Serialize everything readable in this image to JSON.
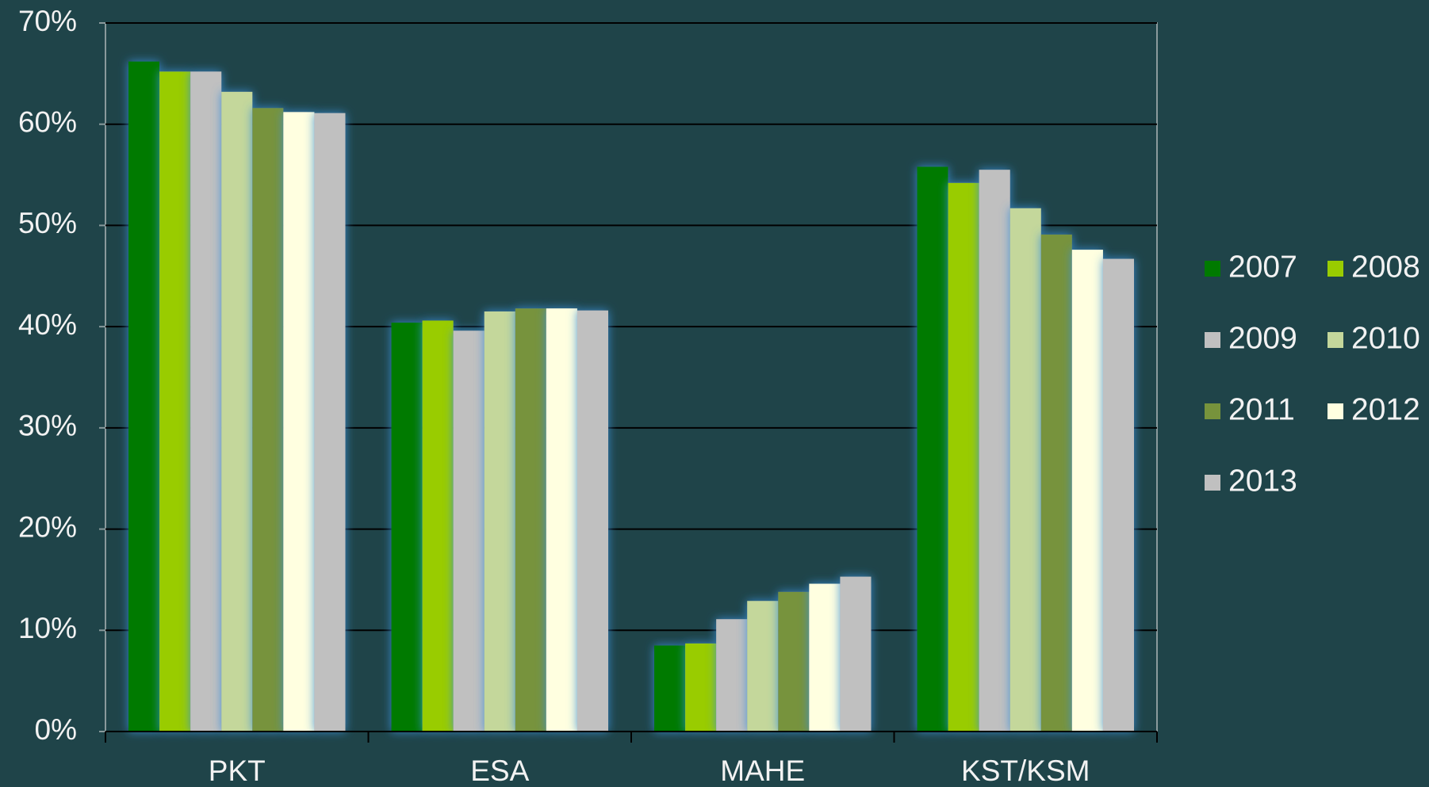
{
  "chart_data": {
    "type": "bar",
    "categories": [
      "PKT",
      "ESA",
      "MAHE",
      "KST/KSM"
    ],
    "series": [
      {
        "name": "2007",
        "color": "#007a00",
        "values": [
          66.2,
          40.4,
          8.5,
          55.8
        ]
      },
      {
        "name": "2008",
        "color": "#99cc00",
        "values": [
          65.2,
          40.6,
          8.7,
          54.2
        ]
      },
      {
        "name": "2009",
        "color": "#c0c0c0",
        "values": [
          65.2,
          39.6,
          11.1,
          55.5
        ]
      },
      {
        "name": "2010",
        "color": "#c4d79b",
        "values": [
          63.2,
          41.5,
          12.9,
          51.7
        ]
      },
      {
        "name": "2011",
        "color": "#77933c",
        "values": [
          61.6,
          41.8,
          13.8,
          49.1
        ]
      },
      {
        "name": "2012",
        "color": "#ffffe0",
        "values": [
          61.2,
          41.8,
          14.6,
          47.6
        ]
      },
      {
        "name": "2013",
        "color": "#c0c0c0",
        "values": [
          61.1,
          41.6,
          15.3,
          46.7
        ]
      }
    ],
    "ylim": [
      0,
      70
    ],
    "yticks": [
      {
        "value": 0,
        "label": "0%"
      },
      {
        "value": 10,
        "label": "10%"
      },
      {
        "value": 20,
        "label": "20%"
      },
      {
        "value": 30,
        "label": "30%"
      },
      {
        "value": 40,
        "label": "40%"
      },
      {
        "value": 50,
        "label": "50%"
      },
      {
        "value": 60,
        "label": "60%"
      },
      {
        "value": 70,
        "label": "70%"
      }
    ],
    "grid": true,
    "legend": "right"
  }
}
